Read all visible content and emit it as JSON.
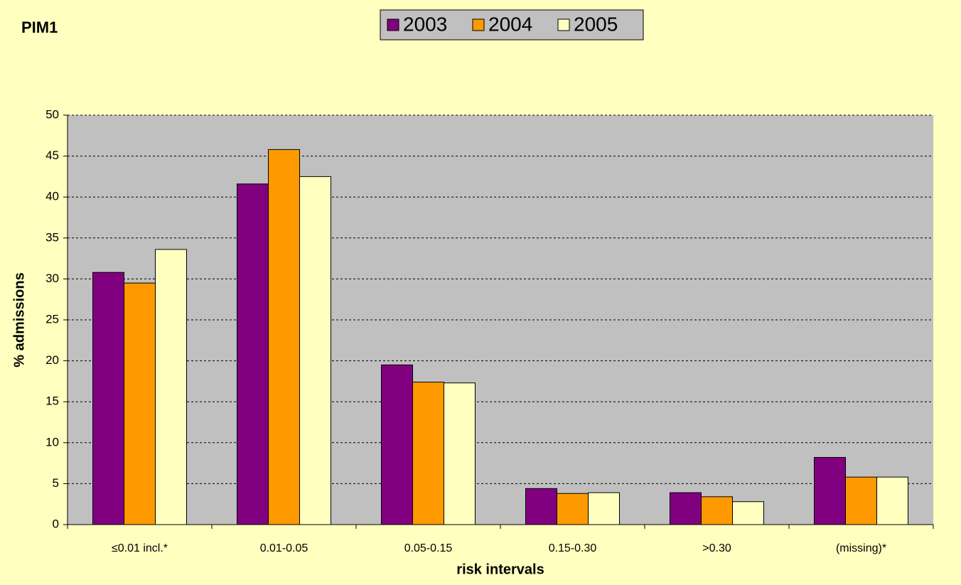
{
  "chart_data": {
    "type": "bar",
    "title": "PIM1",
    "x_label": "risk intervals",
    "y_label": "% admissions",
    "categories": [
      "≤0.01 incl.*",
      "0.01-0.05",
      "0.05-0.15",
      "0.15-0.30",
      ">0.30",
      "(missing)*"
    ],
    "series": [
      {
        "name": "2003",
        "color": "#800080",
        "values": [
          30.8,
          41.6,
          19.5,
          4.4,
          3.9,
          8.2
        ]
      },
      {
        "name": "2004",
        "color": "#ff9900",
        "values": [
          29.5,
          45.8,
          17.4,
          3.8,
          3.4,
          5.8
        ]
      },
      {
        "name": "2005",
        "color": "#ffffc0",
        "values": [
          33.6,
          42.5,
          17.3,
          3.9,
          2.8,
          5.8
        ]
      }
    ],
    "ylim": [
      0,
      50
    ],
    "yticks": [
      0,
      5,
      10,
      15,
      20,
      25,
      30,
      35,
      40,
      45,
      50
    ],
    "grid": true,
    "legend": "top"
  }
}
